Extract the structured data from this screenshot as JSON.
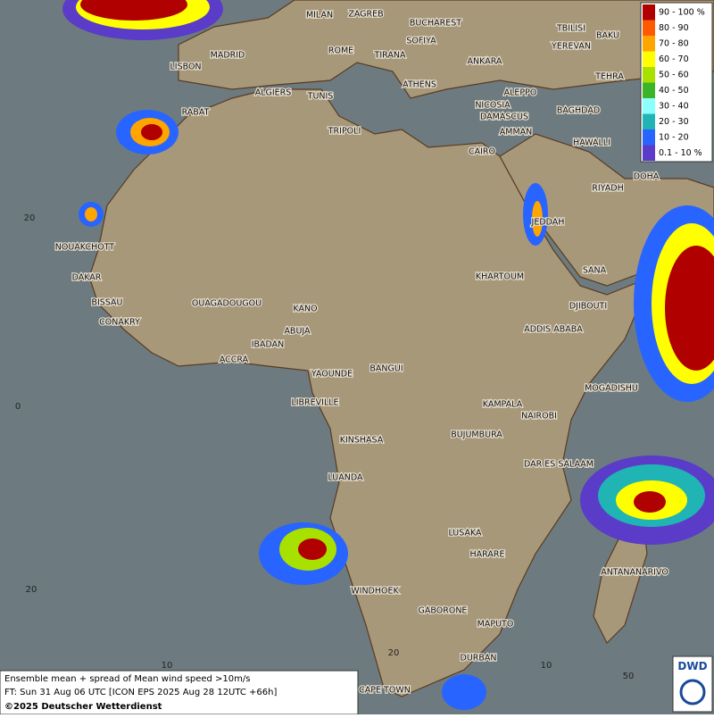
{
  "legend": {
    "items": [
      {
        "label": "90 - 100 %",
        "color": "#b00000"
      },
      {
        "label": "80 - 90",
        "color": "#ff5a00"
      },
      {
        "label": "70 - 80",
        "color": "#ffa500"
      },
      {
        "label": "60 - 70",
        "color": "#ffff00"
      },
      {
        "label": "50 - 60",
        "color": "#a8e000"
      },
      {
        "label": "40 - 50",
        "color": "#3cb428"
      },
      {
        "label": "30 - 40",
        "color": "#8cffff"
      },
      {
        "label": "20 - 30",
        "color": "#20b4b4"
      },
      {
        "label": "10 - 20",
        "color": "#2864ff"
      },
      {
        "label": "0.1 - 10 %",
        "color": "#5a3cc8"
      }
    ]
  },
  "cities": [
    "MILAN",
    "ZAGREB",
    "BUCHAREST",
    "MADRID",
    "ROME",
    "SOFIYA",
    "TIRANA",
    "ANKARA",
    "LISBON",
    "ATHENS",
    "ALGIERS",
    "TUNIS",
    "ALEPPO",
    "RABAT",
    "NICOSIA",
    "BAGHDAD",
    "BAKU",
    "TBILISI",
    "YEREVAN",
    "TEHRA",
    "DAMASCUS",
    "AMMAN",
    "TRIPOLI",
    "CAIRO",
    "HAWALLI",
    "DOHA",
    "RIYADH",
    "JEDDAH",
    "NOUAKCHOTT",
    "DAKAR",
    "SANA",
    "KHARTOUM",
    "BISSAU",
    "OUAGADOUGOU",
    "KANO",
    "DJIBOUTI",
    "CONAKRY",
    "ABUJA",
    "ADDIS ABABA",
    "IBADAN",
    "ACCRA",
    "YAOUNDE",
    "BANGUI",
    "MOGADISHU",
    "LIBREVILLE",
    "KAMPALA",
    "NAIROBI",
    "KINSHASA",
    "BUJUMBURA",
    "DAR ES SALAAM",
    "LUANDA",
    "LUSAKA",
    "HARARE",
    "ANTANANARIVO",
    "WINDHOEK",
    "GABORONE",
    "MAPUTO",
    "DURBAN",
    "CAPE TOWN"
  ],
  "grid_labels": [
    "20",
    "0",
    "20",
    "10",
    "20",
    "10",
    "50"
  ],
  "caption": [
    "Ensemble mean + spread of Mean wind speed >10m/s",
    "FT: Sun 31 Aug 06 UTC [ICON EPS 2025 Aug 28 12UTC +66h]",
    "©2025 Deutscher Wetterdienst"
  ],
  "logo": "DWD"
}
